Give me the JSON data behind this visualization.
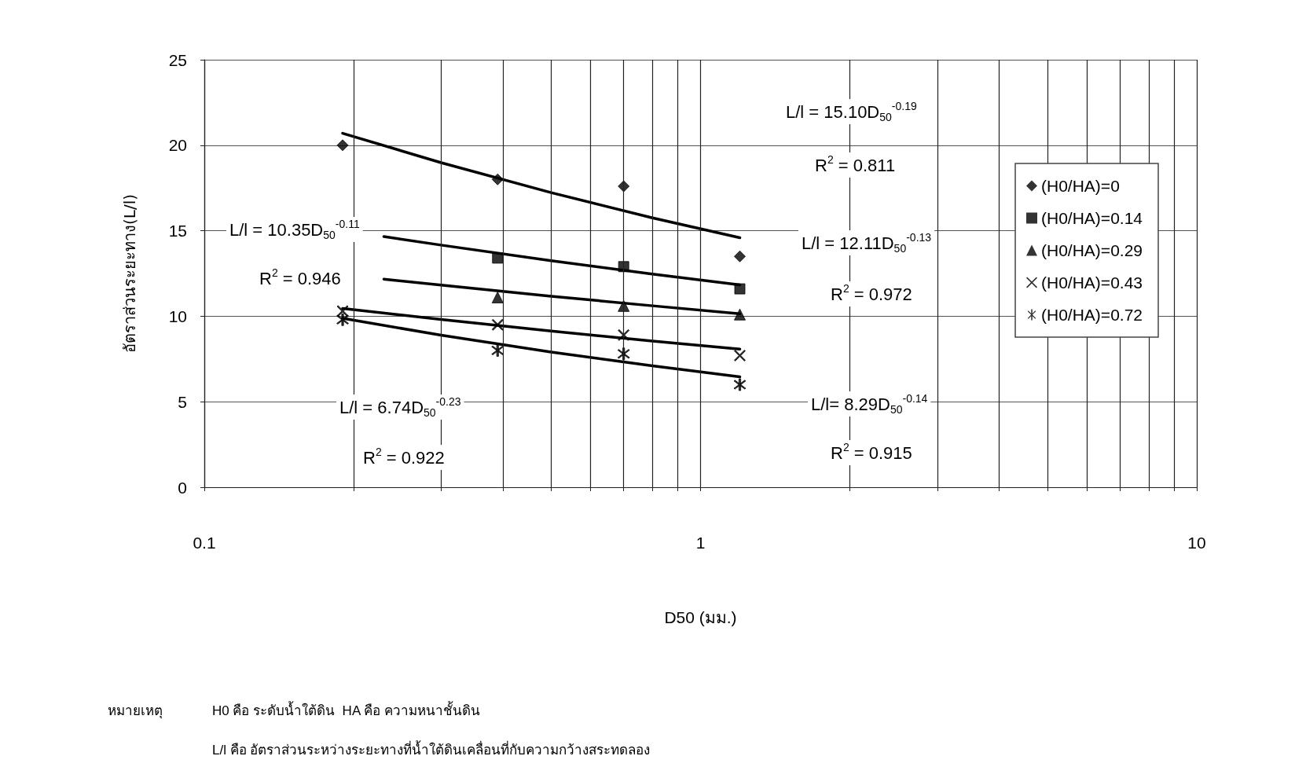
{
  "chart_data": {
    "type": "scatter",
    "xlabel": "D50 (มม.)",
    "ylabel": "อัตราส่วนระยะทาง(L/l)",
    "log": "x",
    "grid": true,
    "legend": "right",
    "xlim": [
      0.1,
      10
    ],
    "xticks": [
      0.1,
      {
        "value": 0.2,
        "label": null
      },
      {
        "value": 0.3,
        "label": null
      },
      {
        "value": 0.4,
        "label": null
      },
      {
        "value": 0.5,
        "label": null
      },
      {
        "value": 0.6,
        "label": null
      },
      {
        "value": 0.7,
        "label": null
      },
      {
        "value": 0.8,
        "label": null
      },
      {
        "value": 0.9,
        "label": null
      },
      1,
      {
        "value": 2,
        "label": null
      },
      {
        "value": 3,
        "label": null
      },
      {
        "value": 4,
        "label": null
      },
      {
        "value": 5,
        "label": null
      },
      {
        "value": 6,
        "label": null
      },
      {
        "value": 7,
        "label": null
      },
      {
        "value": 8,
        "label": null
      },
      {
        "value": 9,
        "label": null
      },
      10
    ],
    "ylim": [
      0,
      25
    ],
    "yticks": [
      0,
      5,
      10,
      15,
      20,
      25
    ],
    "series": [
      {
        "name": "(H0/HA)=0",
        "color": "#000000",
        "marker": "diamond",
        "x": [
          0.19,
          0.39,
          0.7,
          1.2
        ],
        "values": [
          20,
          18,
          17.6,
          13.5
        ]
      },
      {
        "name": "(H0/HA)=0.14",
        "color": "#000000",
        "marker": "square",
        "x": [
          0.39,
          0.7,
          1.2
        ],
        "values": [
          13.4,
          12.9,
          11.6
        ]
      },
      {
        "name": "(H0/HA)=0.29",
        "color": "#000000",
        "marker": "triangle",
        "x": [
          0.39,
          0.7,
          1.2
        ],
        "values": [
          11.1,
          10.6,
          10.1
        ]
      },
      {
        "name": "(H0/HA)=0.43",
        "color": "#000000",
        "marker": "cross",
        "x": [
          0.19,
          0.39,
          0.7,
          1.2
        ],
        "values": [
          10.3,
          9.5,
          8.9,
          7.7
        ]
      },
      {
        "name": "(H0/HA)=0.72",
        "color": "#000000",
        "marker": "star",
        "x": [
          0.19,
          0.39,
          0.7,
          1.2
        ],
        "values": [
          9.8,
          8.0,
          7.8,
          6.0
        ]
      },
      {
        "type": "line",
        "color": "#000000",
        "marker": "none",
        "x": [
          0.19,
          0.3,
          0.5,
          0.8,
          1.2
        ],
        "values": [
          20.7,
          18.98,
          17.23,
          15.75,
          14.59
        ]
      },
      {
        "type": "line",
        "color": "#000000",
        "marker": "none",
        "x": [
          0.23,
          0.3,
          0.5,
          0.8,
          1.2
        ],
        "values": [
          14.66,
          14.16,
          13.25,
          12.47,
          11.83
        ]
      },
      {
        "type": "line",
        "color": "#000000",
        "marker": "none",
        "x": [
          0.23,
          0.3,
          0.5,
          0.8,
          1.2
        ],
        "values": [
          12.17,
          11.82,
          11.17,
          10.61,
          10.14
        ]
      },
      {
        "type": "line",
        "color": "#000000",
        "marker": "none",
        "x": [
          0.19,
          0.3,
          0.5,
          0.8,
          1.2
        ],
        "values": [
          10.46,
          9.81,
          9.13,
          8.55,
          8.08
        ]
      },
      {
        "type": "line",
        "color": "#000000",
        "marker": "none",
        "x": [
          0.19,
          0.3,
          0.5,
          0.8,
          1.2
        ],
        "values": [
          9.88,
          8.89,
          7.9,
          7.1,
          6.46
        ]
      }
    ],
    "annotations": [
      "L/l = 15.10D$_{50}$$^{-0.19}$",
      "R$^{2}$ = 0.811",
      "L/l = 12.11D$_{50}$$^{-0.13}$",
      "R$^{2}$ = 0.972",
      "L/l = 10.35D$_{50}$$^{-0.11}$",
      "R$^{2}$ = 0.946",
      "L/l= 8.29D$_{50}$$^{-0.14}$",
      "R$^{2}$ = 0.915",
      "L/l = 6.74D$_{50}$$^{-0.23}$",
      "R$^{2}$ = 0.922",
      "หมายเหตุ",
      "H0 คือ ระดับน้ำใต้ดิน  HA คือ ความหนาชั้นดิน",
      "L/l คือ อัตราส่วนระหว่างระยะทางที่น้ำใต้ดินเคลื่อนที่กับความกว้างสระทดลอง"
    ]
  }
}
